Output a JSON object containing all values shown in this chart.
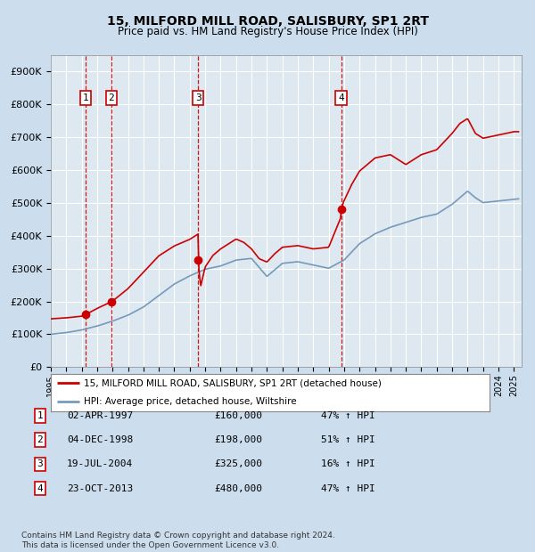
{
  "title1": "15, MILFORD MILL ROAD, SALISBURY, SP1 2RT",
  "title2": "Price paid vs. HM Land Registry's House Price Index (HPI)",
  "ylim": [
    0,
    950000
  ],
  "yticks": [
    0,
    100000,
    200000,
    300000,
    400000,
    500000,
    600000,
    700000,
    800000,
    900000
  ],
  "ytick_labels": [
    "£0",
    "£100K",
    "£200K",
    "£300K",
    "£400K",
    "£500K",
    "£600K",
    "£700K",
    "£800K",
    "£900K"
  ],
  "xlim_start": 1995.0,
  "xlim_end": 2025.5,
  "bg_color": "#ccddee",
  "plot_bg_color": "#dde8f0",
  "grid_color": "#ffffff",
  "red_line_color": "#cc0000",
  "blue_line_color": "#7799bb",
  "vline_color": "#cc0000",
  "sale_dates": [
    1997.25,
    1998.92,
    2004.54,
    2013.81
  ],
  "sale_prices": [
    160000,
    198000,
    325000,
    480000
  ],
  "sale_labels": [
    "1",
    "2",
    "3",
    "4"
  ],
  "legend_red": "15, MILFORD MILL ROAD, SALISBURY, SP1 2RT (detached house)",
  "legend_blue": "HPI: Average price, detached house, Wiltshire",
  "table_rows": [
    [
      "1",
      "02-APR-1997",
      "£160,000",
      "47% ↑ HPI"
    ],
    [
      "2",
      "04-DEC-1998",
      "£198,000",
      "51% ↑ HPI"
    ],
    [
      "3",
      "19-JUL-2004",
      "£325,000",
      "16% ↑ HPI"
    ],
    [
      "4",
      "23-OCT-2013",
      "£480,000",
      "47% ↑ HPI"
    ]
  ],
  "footer": "Contains HM Land Registry data © Crown copyright and database right 2024.\nThis data is licensed under the Open Government Licence v3.0."
}
